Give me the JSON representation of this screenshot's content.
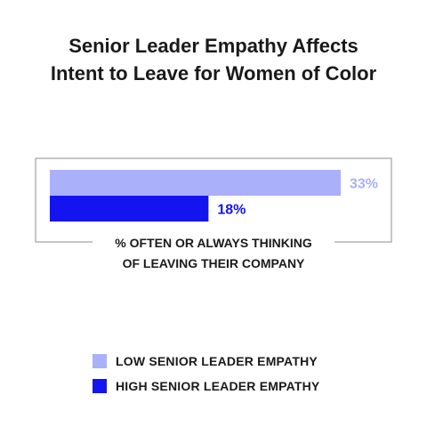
{
  "chart_data": {
    "type": "bar",
    "orientation": "horizontal",
    "title_lines": [
      "Senior Leader Empathy Affects",
      "Intent to Leave for Women of Color"
    ],
    "categories": [
      "LOW SENIOR LEADER EMPATHY",
      "HIGH SENIOR LEADER EMPATHY"
    ],
    "values": [
      33,
      18
    ],
    "data_labels": [
      "33%",
      "18%"
    ],
    "colors": [
      "#aab0fa",
      "#1414f0"
    ],
    "xlabel_lines": [
      "% OFTEN OR ALWAYS THINKING",
      "OF LEAVING THEIR COMPANY"
    ],
    "xlim": [
      0,
      33
    ],
    "grid": false,
    "legend_position": "bottom-left"
  }
}
